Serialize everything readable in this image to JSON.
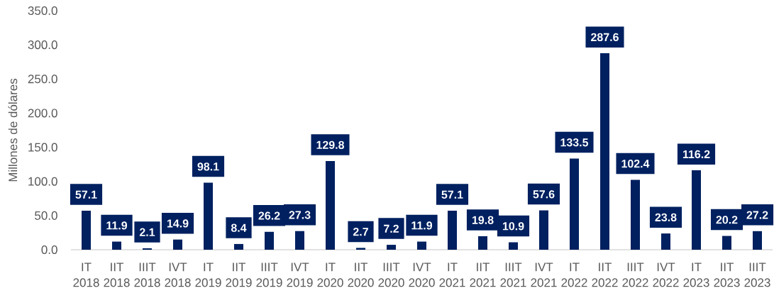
{
  "chart_data": {
    "type": "bar",
    "ylabel": "Millones de dólares",
    "categories": [
      "IT 2018",
      "IIT 2018",
      "IIIT 2018",
      "IVT 2018",
      "IT 2019",
      "IIT 2019",
      "IIIT 2019",
      "IVT 2019",
      "IT 2020",
      "IIT 2020",
      "IIIT 2020",
      "IVT 2020",
      "IT 2021",
      "IIT 2021",
      "IIIT 2021",
      "IVT 2021",
      "IT 2022",
      "IIT 2022",
      "IIIT 2022",
      "IVT 2022",
      "IT 2023",
      "IIT 2023",
      "IIIT 2023"
    ],
    "values": [
      57.1,
      11.9,
      2.1,
      14.9,
      98.1,
      8.4,
      26.2,
      27.3,
      129.8,
      2.7,
      7.2,
      11.9,
      57.1,
      19.8,
      10.9,
      57.6,
      133.5,
      287.6,
      102.4,
      23.8,
      116.2,
      20.2,
      27.2
    ],
    "color": "#002060",
    "ylim": [
      0,
      350
    ],
    "yticks": [
      {
        "value": 0,
        "label": "0.0"
      },
      {
        "value": 50,
        "label": "50.0"
      },
      {
        "value": 100,
        "label": "100.0"
      },
      {
        "value": 150,
        "label": "150.0"
      },
      {
        "value": 200,
        "label": "200.0"
      },
      {
        "value": 250,
        "label": "250.0"
      },
      {
        "value": 300,
        "label": "300.0"
      },
      {
        "value": 350,
        "label": "350.0"
      }
    ],
    "data_labels": true
  }
}
